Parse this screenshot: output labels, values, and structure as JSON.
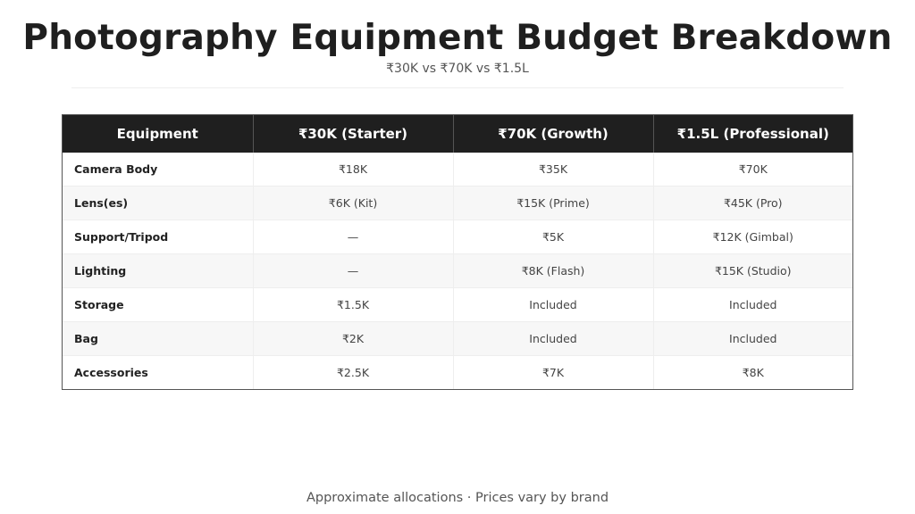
{
  "header": {
    "title": "Photography Equipment Budget Breakdown",
    "subtitle": "₹30K vs ₹70K vs ₹1.5L"
  },
  "table": {
    "columns": [
      "Equipment",
      "₹30K (Starter)",
      "₹70K (Growth)",
      "₹1.5L (Professional)"
    ],
    "rows": [
      [
        "Camera Body",
        "₹18K",
        "₹35K",
        "₹70K"
      ],
      [
        "Lens(es)",
        "₹6K (Kit)",
        "₹15K (Prime)",
        "₹45K (Pro)"
      ],
      [
        "Support/Tripod",
        "—",
        "₹5K",
        "₹12K (Gimbal)"
      ],
      [
        "Lighting",
        "—",
        "₹8K (Flash)",
        "₹15K (Studio)"
      ],
      [
        "Storage",
        "₹1.5K",
        "Included",
        "Included"
      ],
      [
        "Bag",
        "₹2K",
        "Included",
        "Included"
      ],
      [
        "Accessories",
        "₹2.5K",
        "₹7K",
        "₹8K"
      ]
    ]
  },
  "footer": {
    "note": "Approximate allocations · Prices vary by brand"
  },
  "colors": {
    "header_bg": "#1f1f1f",
    "header_text": "#ffffff",
    "row_alt_bg": "#f7f7f7",
    "border": "#555555"
  }
}
